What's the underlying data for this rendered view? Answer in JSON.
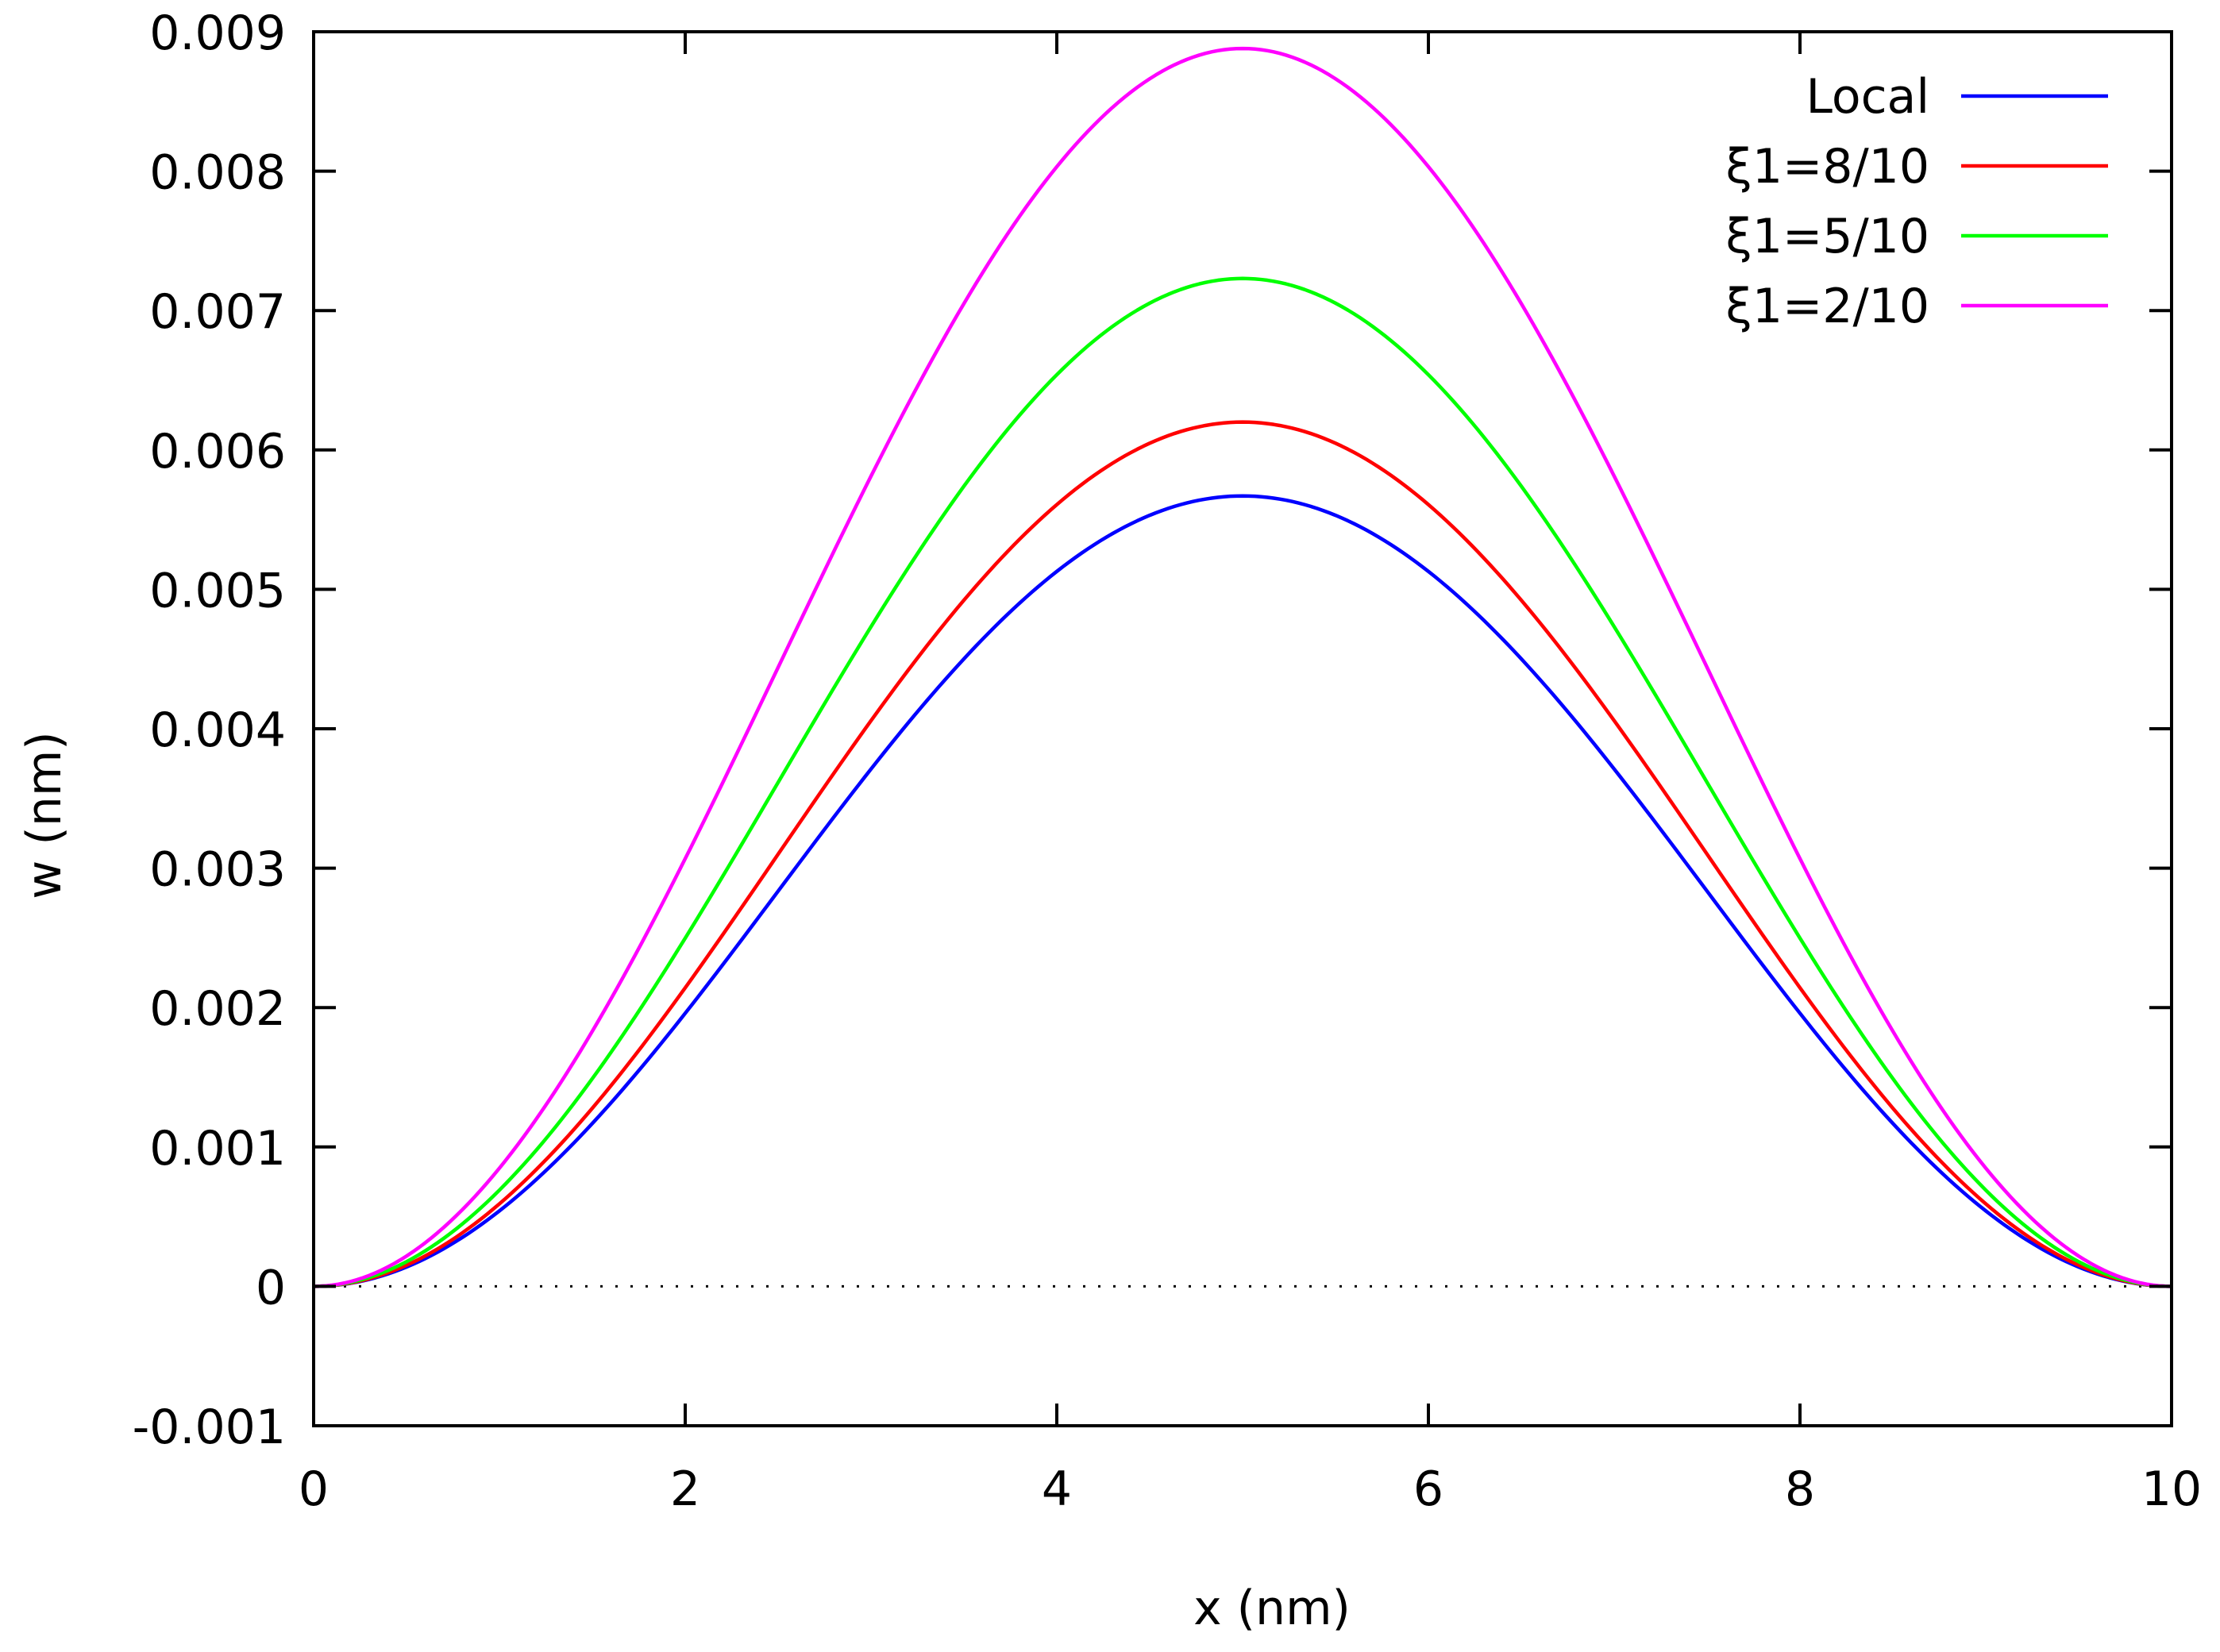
{
  "chart_data": {
    "type": "line",
    "title": "",
    "xlabel": "x (nm)",
    "ylabel": "w (nm)",
    "xlim": [
      0,
      10
    ],
    "ylim": [
      -0.001,
      0.009
    ],
    "xticks": [
      0,
      2,
      4,
      6,
      8,
      10
    ],
    "xtick_labels": [
      "0",
      "2",
      "4",
      "6",
      "8",
      "10"
    ],
    "yticks": [
      -0.001,
      0,
      0.001,
      0.002,
      0.003,
      0.004,
      0.005,
      0.006,
      0.007,
      0.008,
      0.009
    ],
    "ytick_labels": [
      "-0.001",
      "0",
      "0.001",
      "0.002",
      "0.003",
      "0.004",
      "0.005",
      "0.006",
      "0.007",
      "0.008",
      "0.009"
    ],
    "grid": false,
    "zero_line": "dotted",
    "legend_position": "top-right",
    "x": [
      0,
      0.5,
      1,
      1.5,
      2,
      2.5,
      3,
      3.5,
      4,
      4.5,
      5,
      5.5,
      6,
      6.5,
      7,
      7.5,
      8,
      8.5,
      9,
      9.5,
      10
    ],
    "series": [
      {
        "name": "Local",
        "color": "#0000ff",
        "values": [
          0,
          0.00013,
          0.00049,
          0.00104,
          0.00172,
          0.00248,
          0.00327,
          0.00403,
          0.0047,
          0.0052,
          0.00567,
          0.0052,
          0.0047,
          0.00403,
          0.00327,
          0.00248,
          0.00172,
          0.00104,
          0.00049,
          0.00013,
          0
        ]
      },
      {
        "name": "ξ1=8/10",
        "color": "#ff0000",
        "values": [
          0,
          0.00015,
          0.00057,
          0.00119,
          0.00195,
          0.00278,
          0.00361,
          0.00443,
          0.00515,
          0.00572,
          0.0062,
          0.00572,
          0.00515,
          0.00443,
          0.00361,
          0.00278,
          0.00195,
          0.00119,
          0.00057,
          0.00015,
          0
        ]
      },
      {
        "name": "ξ1=5/10",
        "color": "#00ff00",
        "values": [
          0,
          0.00019,
          0.00071,
          0.00144,
          0.00234,
          0.00332,
          0.00428,
          0.0052,
          0.00601,
          0.00666,
          0.00723,
          0.00666,
          0.00601,
          0.0052,
          0.00428,
          0.00332,
          0.00234,
          0.00144,
          0.00071,
          0.00019,
          0
        ]
      },
      {
        "name": "ξ1=2/10",
        "color": "#ff00ff",
        "values": [
          0,
          0.00025,
          0.00095,
          0.00194,
          0.00309,
          0.00429,
          0.00546,
          0.00655,
          0.00752,
          0.0083,
          0.00888,
          0.0083,
          0.00752,
          0.00655,
          0.00546,
          0.00429,
          0.00309,
          0.00194,
          0.00095,
          0.00025,
          0
        ]
      }
    ]
  }
}
